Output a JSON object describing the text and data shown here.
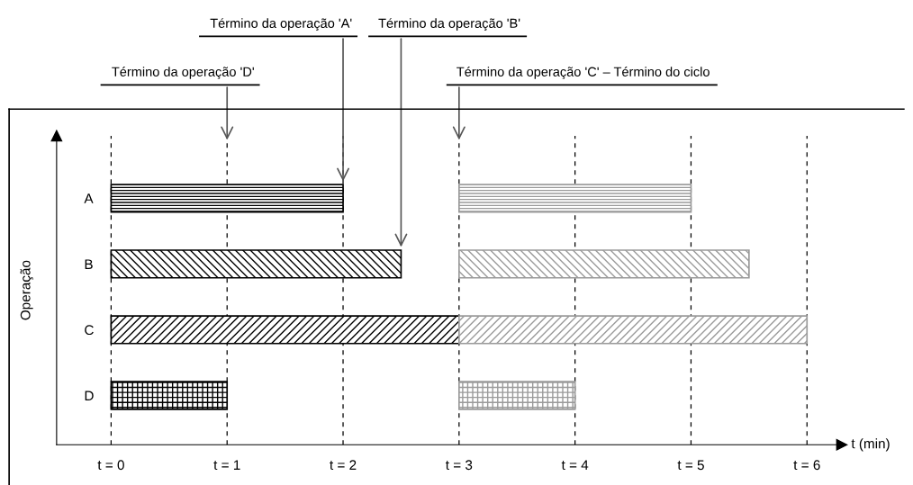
{
  "chart_data": {
    "type": "bar",
    "orientation": "horizontal",
    "categories": [
      "A",
      "B",
      "C",
      "D"
    ],
    "series": [
      {
        "color": "#000000",
        "base": [
          0,
          0,
          0,
          0
        ],
        "values": [
          2,
          2.5,
          3,
          1
        ]
      },
      {
        "color": "#9a9a9a",
        "base": [
          3,
          3,
          3,
          3
        ],
        "values": [
          2,
          2.5,
          3,
          1
        ]
      }
    ],
    "xlim": [
      -0.47,
      6.3
    ],
    "xticks": [
      {
        "value": 0,
        "label": "t = 0"
      },
      {
        "value": 1,
        "label": "t = 1"
      },
      {
        "value": 2,
        "label": "t = 2"
      },
      {
        "value": 3,
        "label": "t = 3"
      },
      {
        "value": 4,
        "label": "t = 4"
      },
      {
        "value": 5,
        "label": "t = 5"
      },
      {
        "value": 6,
        "label": "t = 6"
      }
    ],
    "xlabel": "t (min)",
    "ylabel": "Operação",
    "grid": "x",
    "annotations": [
      "Término da operação 'D'",
      "Término da operação 'A'",
      "Término da operação 'B'",
      "Término da operação 'C' – Término do ciclo"
    ]
  }
}
